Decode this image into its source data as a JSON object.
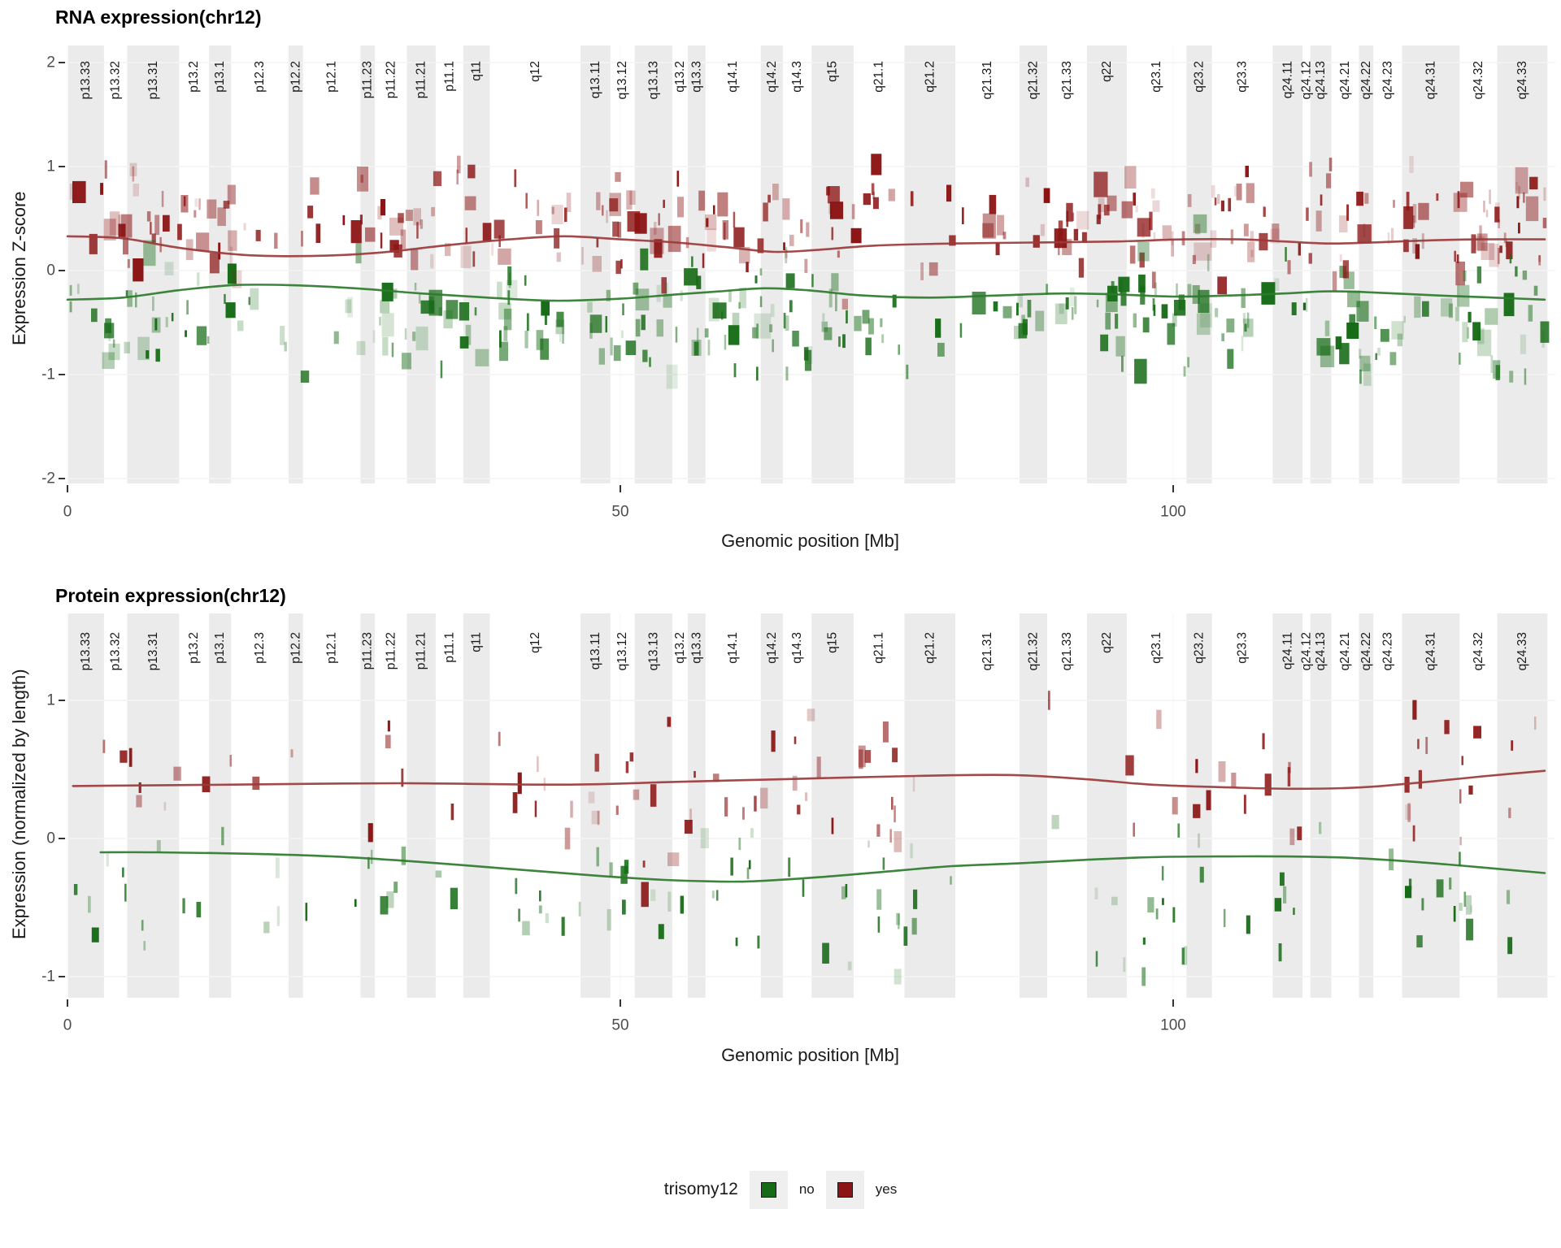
{
  "colors": {
    "trisomy_no": "#166B16",
    "trisomy_yes": "#8B1414",
    "trend_no": "#2D7A2D",
    "trend_yes": "#9B3A3A",
    "band_fill": "#EBEBEB",
    "gridline_h": "#F4F4F4",
    "gridline_v": "#FAFAFA",
    "axis_text": "#4D4D4D",
    "band_label": "#1A1A1A",
    "tick_mark": "#333333",
    "legend_key_bg": "#EFEFEF"
  },
  "x_axis": {
    "label": "Genomic position [Mb]",
    "ticks": [
      0,
      50,
      100
    ],
    "domain": [
      0,
      133.85
    ]
  },
  "cytobands": [
    {
      "name": "p13.33",
      "start": 0,
      "end": 3.3,
      "shaded": true
    },
    {
      "name": "p13.32",
      "start": 3.3,
      "end": 5.4,
      "shaded": false
    },
    {
      "name": "p13.31",
      "start": 5.4,
      "end": 10.1,
      "shaded": true
    },
    {
      "name": "p13.2",
      "start": 10.1,
      "end": 12.8,
      "shaded": false
    },
    {
      "name": "p13.1",
      "start": 12.8,
      "end": 14.8,
      "shaded": true
    },
    {
      "name": "p12.3",
      "start": 14.8,
      "end": 20.0,
      "shaded": false
    },
    {
      "name": "p12.2",
      "start": 20.0,
      "end": 21.3,
      "shaded": true
    },
    {
      "name": "p12.1",
      "start": 21.3,
      "end": 26.5,
      "shaded": false
    },
    {
      "name": "p11.23",
      "start": 26.5,
      "end": 27.8,
      "shaded": true
    },
    {
      "name": "p11.22",
      "start": 27.8,
      "end": 30.7,
      "shaded": false
    },
    {
      "name": "p11.21",
      "start": 30.7,
      "end": 33.3,
      "shaded": true
    },
    {
      "name": "p11.1",
      "start": 33.3,
      "end": 35.8,
      "shaded": false
    },
    {
      "name": "q11",
      "start": 35.8,
      "end": 38.2,
      "shaded": true
    },
    {
      "name": "q12",
      "start": 38.2,
      "end": 46.4,
      "shaded": false
    },
    {
      "name": "q13.11",
      "start": 46.4,
      "end": 49.1,
      "shaded": true
    },
    {
      "name": "q13.12",
      "start": 49.1,
      "end": 51.3,
      "shaded": false
    },
    {
      "name": "q13.13",
      "start": 51.3,
      "end": 54.7,
      "shaded": true
    },
    {
      "name": "q13.2",
      "start": 54.7,
      "end": 56.1,
      "shaded": false
    },
    {
      "name": "q13.3",
      "start": 56.1,
      "end": 57.7,
      "shaded": true
    },
    {
      "name": "q14.1",
      "start": 57.7,
      "end": 62.7,
      "shaded": false
    },
    {
      "name": "q14.2",
      "start": 62.7,
      "end": 64.7,
      "shaded": true
    },
    {
      "name": "q14.3",
      "start": 64.7,
      "end": 67.3,
      "shaded": false
    },
    {
      "name": "q15",
      "start": 67.3,
      "end": 71.1,
      "shaded": true
    },
    {
      "name": "q21.1",
      "start": 71.1,
      "end": 75.7,
      "shaded": false
    },
    {
      "name": "q21.2",
      "start": 75.7,
      "end": 80.3,
      "shaded": true
    },
    {
      "name": "q21.31",
      "start": 80.3,
      "end": 86.1,
      "shaded": false
    },
    {
      "name": "q21.32",
      "start": 86.1,
      "end": 88.6,
      "shaded": true
    },
    {
      "name": "q21.33",
      "start": 88.6,
      "end": 92.2,
      "shaded": false
    },
    {
      "name": "q22",
      "start": 92.2,
      "end": 95.8,
      "shaded": true
    },
    {
      "name": "q23.1",
      "start": 95.8,
      "end": 101.2,
      "shaded": false
    },
    {
      "name": "q23.2",
      "start": 101.2,
      "end": 103.5,
      "shaded": true
    },
    {
      "name": "q23.3",
      "start": 103.5,
      "end": 109.0,
      "shaded": false
    },
    {
      "name": "q24.11",
      "start": 109.0,
      "end": 111.7,
      "shaded": true
    },
    {
      "name": "q24.12",
      "start": 111.7,
      "end": 112.4,
      "shaded": false
    },
    {
      "name": "q24.13",
      "start": 112.4,
      "end": 114.3,
      "shaded": true
    },
    {
      "name": "q24.21",
      "start": 114.3,
      "end": 116.8,
      "shaded": false
    },
    {
      "name": "q24.22",
      "start": 116.8,
      "end": 118.1,
      "shaded": true
    },
    {
      "name": "q24.23",
      "start": 118.1,
      "end": 120.7,
      "shaded": false
    },
    {
      "name": "q24.31",
      "start": 120.7,
      "end": 125.9,
      "shaded": true
    },
    {
      "name": "q24.32",
      "start": 125.9,
      "end": 129.3,
      "shaded": false
    },
    {
      "name": "q24.33",
      "start": 129.3,
      "end": 133.85,
      "shaded": true
    }
  ],
  "chart_data": [
    {
      "type": "scatter",
      "id": "rna",
      "title": "RNA expression(chr12)",
      "xlabel": "Genomic position [Mb]",
      "ylabel": "Expression Z-score",
      "x_ticks": [
        0,
        50,
        100
      ],
      "y_ticks": [
        2,
        1,
        0,
        -1,
        -2
      ],
      "ylim": [
        -2.2,
        2.2
      ],
      "xlim": [
        0,
        133.85
      ],
      "grid": "major-light",
      "series": [
        {
          "name": "yes",
          "role": "trend",
          "points": [
            [
              0,
              0.33
            ],
            [
              5,
              0.31
            ],
            [
              10,
              0.22
            ],
            [
              16,
              0.15
            ],
            [
              22,
              0.14
            ],
            [
              28,
              0.17
            ],
            [
              34,
              0.24
            ],
            [
              40,
              0.3
            ],
            [
              45,
              0.33
            ],
            [
              50,
              0.3
            ],
            [
              55,
              0.27
            ],
            [
              60,
              0.22
            ],
            [
              64,
              0.18
            ],
            [
              68,
              0.2
            ],
            [
              73,
              0.24
            ],
            [
              80,
              0.26
            ],
            [
              88,
              0.27
            ],
            [
              95,
              0.28
            ],
            [
              101,
              0.3
            ],
            [
              106,
              0.3
            ],
            [
              110,
              0.28
            ],
            [
              114,
              0.26
            ],
            [
              118,
              0.27
            ],
            [
              123,
              0.29
            ],
            [
              128,
              0.3
            ],
            [
              133.6,
              0.3
            ]
          ]
        },
        {
          "name": "no",
          "role": "trend",
          "points": [
            [
              0,
              -0.28
            ],
            [
              5,
              -0.26
            ],
            [
              10,
              -0.19
            ],
            [
              15,
              -0.14
            ],
            [
              20,
              -0.14
            ],
            [
              26,
              -0.17
            ],
            [
              32,
              -0.22
            ],
            [
              38,
              -0.26
            ],
            [
              44,
              -0.29
            ],
            [
              50,
              -0.27
            ],
            [
              55,
              -0.23
            ],
            [
              59,
              -0.2
            ],
            [
              63,
              -0.17
            ],
            [
              67,
              -0.19
            ],
            [
              72,
              -0.24
            ],
            [
              78,
              -0.26
            ],
            [
              84,
              -0.24
            ],
            [
              90,
              -0.22
            ],
            [
              95,
              -0.23
            ],
            [
              100,
              -0.25
            ],
            [
              105,
              -0.24
            ],
            [
              110,
              -0.22
            ],
            [
              114,
              -0.2
            ],
            [
              118,
              -0.21
            ],
            [
              124,
              -0.24
            ],
            [
              129,
              -0.26
            ],
            [
              133.6,
              -0.28
            ]
          ]
        }
      ],
      "points_model": {
        "seed": 42,
        "count": 600,
        "x_range": [
          0.3,
          133.6
        ],
        "uniform_weight": 0.45,
        "cluster_sigma": 2.4,
        "cluster_centers": [
          3,
          8,
          13,
          28,
          33,
          41,
          46,
          51,
          56,
          60,
          64,
          68,
          72,
          90,
          95,
          100,
          104,
          108,
          112,
          117,
          122,
          127,
          131
        ],
        "y_mean": 0.45,
        "y_sd": 0.26,
        "y_clamp": [
          -0.45,
          1.02
        ],
        "w_base": 2.5,
        "w_var": 15,
        "h_base": 8,
        "h_var": 14,
        "h_size": 12,
        "strong_alpha_frac": 0.45
      }
    },
    {
      "type": "scatter",
      "id": "protein",
      "title": "Protein expression(chr12)",
      "xlabel": "Genomic position [Mb]",
      "ylabel": "Expression (normalized by length)",
      "x_ticks": [
        0,
        50,
        100
      ],
      "y_ticks": [
        1,
        0,
        -1
      ],
      "ylim": [
        -1.15,
        1.63
      ],
      "xlim": [
        0,
        133.85
      ],
      "grid": "major-light",
      "series": [
        {
          "name": "yes",
          "role": "trend",
          "points": [
            [
              0.5,
              0.38
            ],
            [
              15,
              0.39
            ],
            [
              30,
              0.4
            ],
            [
              45,
              0.39
            ],
            [
              55,
              0.41
            ],
            [
              65,
              0.43
            ],
            [
              75,
              0.45
            ],
            [
              85,
              0.46
            ],
            [
              92,
              0.43
            ],
            [
              98,
              0.39
            ],
            [
              105,
              0.37
            ],
            [
              111,
              0.36
            ],
            [
              117,
              0.37
            ],
            [
              123,
              0.41
            ],
            [
              128,
              0.45
            ],
            [
              133.6,
              0.49
            ]
          ]
        },
        {
          "name": "no",
          "role": "trend",
          "points": [
            [
              3,
              -0.1
            ],
            [
              8,
              -0.1
            ],
            [
              16,
              -0.11
            ],
            [
              24,
              -0.13
            ],
            [
              32,
              -0.17
            ],
            [
              40,
              -0.22
            ],
            [
              48,
              -0.27
            ],
            [
              54,
              -0.3
            ],
            [
              58,
              -0.31
            ],
            [
              62,
              -0.31
            ],
            [
              68,
              -0.28
            ],
            [
              74,
              -0.24
            ],
            [
              80,
              -0.2
            ],
            [
              86,
              -0.18
            ],
            [
              92,
              -0.155
            ],
            [
              98,
              -0.135
            ],
            [
              104,
              -0.13
            ],
            [
              110,
              -0.13
            ],
            [
              116,
              -0.14
            ],
            [
              122,
              -0.17
            ],
            [
              128,
              -0.21
            ],
            [
              133.6,
              -0.25
            ]
          ]
        }
      ],
      "points_model": {
        "seed": 7,
        "count": 210,
        "x_range": [
          0.5,
          133.5
        ],
        "uniform_weight": 0.3,
        "cluster_sigma": 2.0,
        "cluster_centers": [
          7,
          29,
          43,
          50,
          55,
          60,
          67,
          75,
          97,
          103,
          110,
          122,
          127
        ],
        "y_mean": 0.42,
        "y_sd": 0.28,
        "y_clamp": [
          -0.75,
          1.0
        ],
        "w_base": 2.5,
        "w_var": 8,
        "h_base": 8,
        "h_var": 16,
        "h_size": 8,
        "strong_alpha_frac": 0.45
      }
    }
  ],
  "panels": [
    {
      "id": "rna",
      "title": "RNA expression(chr12)",
      "y_label": "Expression Z-score",
      "y_ticks": [
        2,
        1,
        0,
        -1,
        -2
      ]
    },
    {
      "id": "protein",
      "title": "Protein expression(chr12)",
      "y_label": "Expression (normalized by length)",
      "y_ticks": [
        1,
        0,
        -1
      ]
    }
  ],
  "legend": {
    "title": "trisomy12",
    "items": [
      {
        "label": "no",
        "color_key": "trisomy_no"
      },
      {
        "label": "yes",
        "color_key": "trisomy_yes"
      }
    ]
  }
}
